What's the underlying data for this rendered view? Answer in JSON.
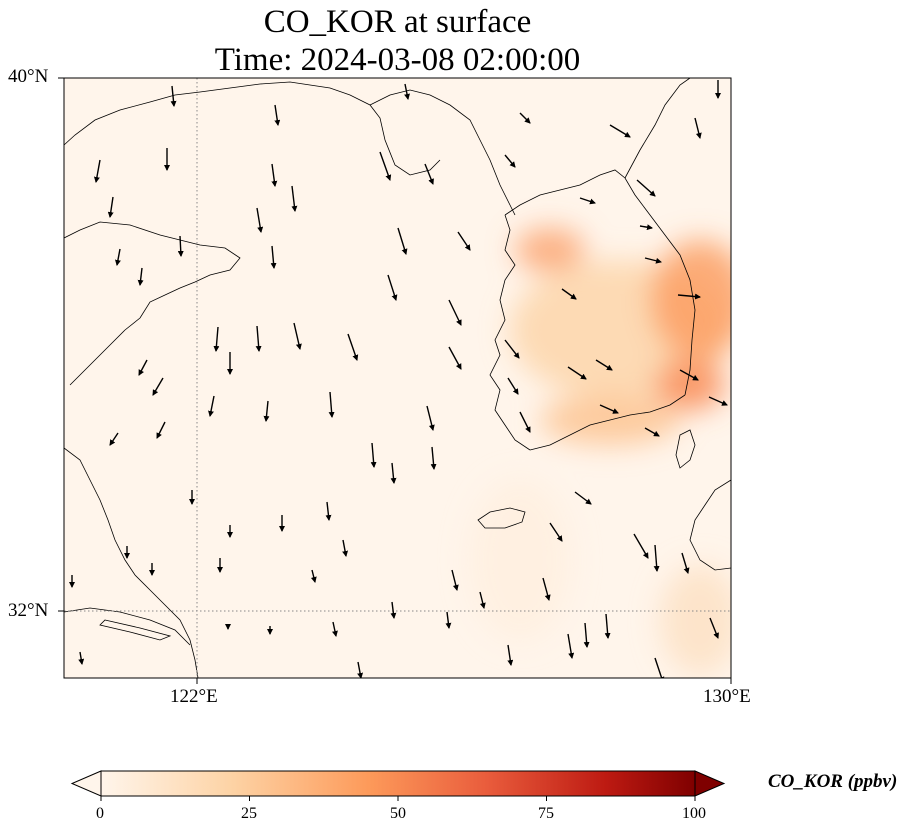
{
  "title": {
    "line1": "CO_KOR at surface",
    "line2": "Time: 2024-03-08 02:00:00"
  },
  "map": {
    "lon_range": [
      120,
      130
    ],
    "lat_range": [
      31,
      40
    ],
    "gridlines": {
      "lon": [
        122,
        130
      ],
      "lat": [
        32,
        40
      ],
      "style": "dotted"
    },
    "lat_ticks": [
      {
        "value": 40,
        "label": "40°N"
      },
      {
        "value": 32,
        "label": "32°N"
      }
    ],
    "lon_ticks": [
      {
        "value": 122,
        "label": "122°E"
      },
      {
        "value": 130,
        "label": "130°E"
      }
    ],
    "background_color": "#fff5eb",
    "coastline_color": "#000000",
    "wind_vector_color": "#000000"
  },
  "colorbar": {
    "label": "CO_KOR (ppbv)",
    "min": 0,
    "max": 100,
    "extend": "both",
    "colormap": "Oranges-to-dark-red",
    "stops": [
      "#fff5eb",
      "#fdd3a5",
      "#fd9a5a",
      "#e95c3c",
      "#bd1a12",
      "#7f0000"
    ],
    "ticks": [
      {
        "value": 0,
        "label": "0"
      },
      {
        "value": 25,
        "label": "25"
      },
      {
        "value": 50,
        "label": "50"
      },
      {
        "value": 75,
        "label": "75"
      },
      {
        "value": 100,
        "label": "100"
      }
    ]
  }
}
